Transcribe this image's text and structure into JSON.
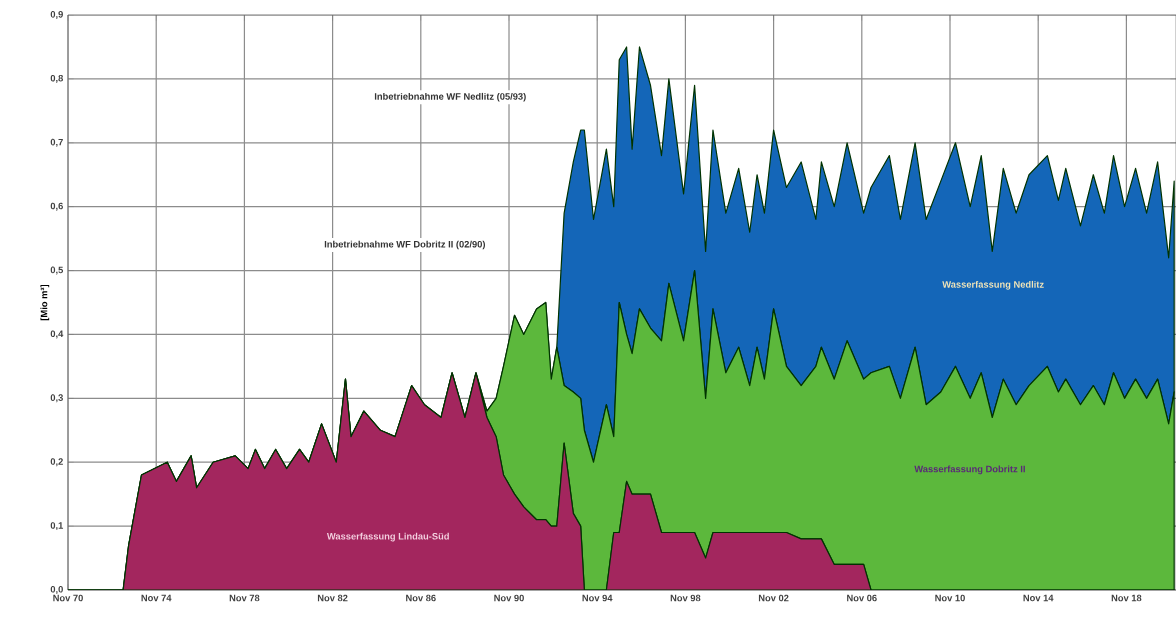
{
  "chart_data": {
    "type": "area",
    "stacked": true,
    "grid": true,
    "ylabel": "[Mio m³]",
    "x": [
      "1970-11",
      "1973-05",
      "1973-08",
      "1974-03",
      "1975-05",
      "1975-10",
      "1976-06",
      "1976-09",
      "1977-06",
      "1978-06",
      "1979-01",
      "1979-05",
      "1979-10",
      "1980-04",
      "1980-10",
      "1981-05",
      "1981-10",
      "1982-05",
      "1983-01",
      "1983-06",
      "1983-09",
      "1984-04",
      "1985-01",
      "1985-09",
      "1986-06",
      "1987-01",
      "1987-10",
      "1988-04",
      "1988-11",
      "1989-05",
      "1989-11",
      "1990-04",
      "1990-08",
      "1991-02",
      "1991-07",
      "1992-02",
      "1992-07",
      "1992-10",
      "1993-01",
      "1993-05",
      "1993-10",
      "1994-02",
      "1994-04",
      "1994-09",
      "1995-04",
      "1995-08",
      "1995-11",
      "1996-03",
      "1996-06",
      "1996-10",
      "1997-04",
      "1997-10",
      "1998-02",
      "1998-10",
      "1999-04",
      "1999-10",
      "2000-02",
      "2000-09",
      "2001-04",
      "2001-10",
      "2002-02",
      "2002-06",
      "2002-11",
      "2003-06",
      "2004-02",
      "2004-10",
      "2005-01",
      "2005-08",
      "2006-03",
      "2006-12",
      "2007-04",
      "2008-02",
      "2008-08",
      "2009-04",
      "2009-10",
      "2010-06",
      "2011-02",
      "2011-10",
      "2012-04",
      "2012-10",
      "2013-04",
      "2013-11",
      "2014-06",
      "2015-04",
      "2015-10",
      "2016-02",
      "2016-10",
      "2017-05",
      "2017-11",
      "2018-04",
      "2018-10",
      "2019-04",
      "2019-10",
      "2020-04",
      "2020-10",
      "2021-01"
    ],
    "series": [
      {
        "name": "Wasserfassung Lindau-Süd",
        "color": "#a3265e",
        "values": [
          0,
          0,
          0.07,
          0.18,
          0.2,
          0.17,
          0.21,
          0.16,
          0.2,
          0.21,
          0.19,
          0.22,
          0.19,
          0.22,
          0.19,
          0.22,
          0.2,
          0.26,
          0.2,
          0.33,
          0.24,
          0.28,
          0.25,
          0.24,
          0.32,
          0.29,
          0.27,
          0.34,
          0.27,
          0.34,
          0.27,
          0.24,
          0.18,
          0.15,
          0.13,
          0.11,
          0.11,
          0.1,
          0.1,
          0.23,
          0.12,
          0.1,
          0,
          0,
          0,
          0.09,
          0.09,
          0.17,
          0.15,
          0.15,
          0.15,
          0.09,
          0.09,
          0.09,
          0.09,
          0.05,
          0.09,
          0.09,
          0.09,
          0.09,
          0.09,
          0.09,
          0.09,
          0.09,
          0.08,
          0.08,
          0.08,
          0.04,
          0.04,
          0.04,
          0,
          0,
          0,
          0,
          0,
          0,
          0,
          0,
          0,
          0,
          0,
          0,
          0,
          0,
          0,
          0,
          0,
          0,
          0,
          0,
          0,
          0,
          0,
          0,
          0,
          0
        ]
      },
      {
        "name": "Wasserfassung Dobritz II",
        "color": "#5cb83c",
        "values": [
          0,
          0,
          0,
          0,
          0,
          0,
          0,
          0,
          0,
          0,
          0,
          0,
          0,
          0,
          0,
          0,
          0,
          0,
          0,
          0,
          0,
          0,
          0,
          0,
          0,
          0,
          0,
          0,
          0,
          0,
          0.01,
          0.06,
          0.17,
          0.28,
          0.27,
          0.33,
          0.34,
          0.23,
          0.28,
          0.09,
          0.19,
          0.2,
          0.25,
          0.2,
          0.29,
          0.15,
          0.36,
          0.23,
          0.22,
          0.29,
          0.26,
          0.3,
          0.39,
          0.3,
          0.41,
          0.25,
          0.35,
          0.25,
          0.29,
          0.23,
          0.29,
          0.24,
          0.35,
          0.26,
          0.24,
          0.27,
          0.3,
          0.29,
          0.35,
          0.29,
          0.34,
          0.35,
          0.3,
          0.38,
          0.29,
          0.31,
          0.35,
          0.3,
          0.34,
          0.27,
          0.33,
          0.29,
          0.32,
          0.35,
          0.31,
          0.33,
          0.29,
          0.32,
          0.29,
          0.34,
          0.3,
          0.33,
          0.3,
          0.33,
          0.26,
          0.31
        ]
      },
      {
        "name": "Wasserfassung Nedlitz",
        "color": "#1466b8",
        "values": [
          0,
          0,
          0,
          0,
          0,
          0,
          0,
          0,
          0,
          0,
          0,
          0,
          0,
          0,
          0,
          0,
          0,
          0,
          0,
          0,
          0,
          0,
          0,
          0,
          0,
          0,
          0,
          0,
          0,
          0,
          0,
          0,
          0,
          0,
          0,
          0,
          0,
          0,
          0,
          0.27,
          0.36,
          0.42,
          0.47,
          0.38,
          0.4,
          0.36,
          0.38,
          0.45,
          0.32,
          0.41,
          0.38,
          0.29,
          0.32,
          0.23,
          0.29,
          0.23,
          0.28,
          0.25,
          0.28,
          0.24,
          0.27,
          0.26,
          0.28,
          0.28,
          0.35,
          0.23,
          0.29,
          0.27,
          0.31,
          0.26,
          0.29,
          0.33,
          0.28,
          0.32,
          0.29,
          0.33,
          0.35,
          0.3,
          0.34,
          0.26,
          0.33,
          0.3,
          0.33,
          0.33,
          0.3,
          0.33,
          0.28,
          0.33,
          0.3,
          0.34,
          0.3,
          0.33,
          0.29,
          0.34,
          0.26,
          0.33
        ]
      }
    ],
    "xlim": [
      "1970-11",
      "2021-02"
    ],
    "xticks": [
      {
        "value": "1970-11",
        "label": "Nov 70"
      },
      {
        "value": "1974-11",
        "label": "Nov 74"
      },
      {
        "value": "1978-11",
        "label": "Nov 78"
      },
      {
        "value": "1982-11",
        "label": "Nov 82"
      },
      {
        "value": "1986-11",
        "label": "Nov 86"
      },
      {
        "value": "1990-11",
        "label": "Nov 90"
      },
      {
        "value": "1994-11",
        "label": "Nov 94"
      },
      {
        "value": "1998-11",
        "label": "Nov 98"
      },
      {
        "value": "2002-11",
        "label": "Nov 02"
      },
      {
        "value": "2006-11",
        "label": "Nov 06"
      },
      {
        "value": "2010-11",
        "label": "Nov 10"
      },
      {
        "value": "2014-11",
        "label": "Nov 14"
      },
      {
        "value": "2018-11",
        "label": "Nov 18"
      }
    ],
    "ylim": [
      0,
      0.9
    ],
    "yticks": [
      {
        "value": 0,
        "label": "0,0"
      },
      {
        "value": 0.1,
        "label": "0,1"
      },
      {
        "value": 0.2,
        "label": "0,2"
      },
      {
        "value": 0.3,
        "label": "0,3"
      },
      {
        "value": 0.4,
        "label": "0,4"
      },
      {
        "value": 0.5,
        "label": "0,5"
      },
      {
        "value": 0.6,
        "label": "0,6"
      },
      {
        "value": 0.7,
        "label": "0,7"
      },
      {
        "value": 0.8,
        "label": "0,8"
      },
      {
        "value": 0.9,
        "label": "0,9"
      }
    ],
    "annotations": [
      "Inbetriebnahme WF Nedlitz (05/93)",
      "Inbetriebnahme WF Dobritz II (02/90)"
    ]
  }
}
